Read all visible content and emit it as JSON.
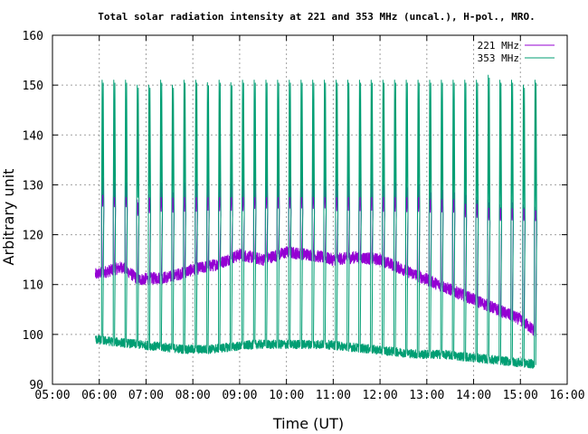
{
  "chart_data": {
    "type": "line",
    "title": "Total solar radiation intensity at 221 and 353 MHz (uncal.), H-pol., MRO.",
    "xlabel": "Time (UT)",
    "ylabel": "Arbitrary unit",
    "xlim": [
      "05:00",
      "16:00"
    ],
    "ylim": [
      90,
      160
    ],
    "x_ticks": [
      "05:00",
      "06:00",
      "07:00",
      "08:00",
      "09:00",
      "10:00",
      "11:00",
      "12:00",
      "13:00",
      "14:00",
      "15:00",
      "16:00"
    ],
    "y_ticks": [
      90,
      100,
      110,
      120,
      130,
      140,
      150,
      160
    ],
    "grid": true,
    "legend_position": "top-right",
    "time_range": [
      "05:55",
      "15:20"
    ],
    "calibration_interval_minutes": 15,
    "series": [
      {
        "name": "221 MHz",
        "color": "#9400d3",
        "baseline_points": [
          [
            "05:55",
            112
          ],
          [
            "06:30",
            113.5
          ],
          [
            "06:50",
            111
          ],
          [
            "07:30",
            111.5
          ],
          [
            "08:00",
            113
          ],
          [
            "08:30",
            114
          ],
          [
            "09:00",
            116
          ],
          [
            "09:30",
            115
          ],
          [
            "10:00",
            116.5
          ],
          [
            "10:30",
            116
          ],
          [
            "11:00",
            115
          ],
          [
            "11:30",
            115.5
          ],
          [
            "12:00",
            115
          ],
          [
            "12:30",
            113
          ],
          [
            "13:00",
            111
          ],
          [
            "13:30",
            109
          ],
          [
            "14:00",
            107
          ],
          [
            "14:30",
            105
          ],
          [
            "15:00",
            103
          ],
          [
            "15:20",
            100.5
          ]
        ],
        "calibration_peaks": [
          [
            "06:03",
            132
          ],
          [
            "06:18",
            131
          ],
          [
            "06:33",
            131
          ],
          [
            "06:48",
            127
          ],
          [
            "07:03",
            128
          ],
          [
            "07:18",
            131
          ],
          [
            "07:33",
            129
          ],
          [
            "07:48",
            131
          ],
          [
            "08:03",
            131
          ],
          [
            "08:18",
            133
          ],
          [
            "08:33",
            132
          ],
          [
            "08:48",
            132.5
          ],
          [
            "09:03",
            132
          ],
          [
            "09:18",
            132
          ],
          [
            "09:33",
            132.5
          ],
          [
            "09:48",
            132.5
          ],
          [
            "10:03",
            132.5
          ],
          [
            "10:18",
            133
          ],
          [
            "10:33",
            132
          ],
          [
            "10:48",
            133
          ],
          [
            "11:03",
            132
          ],
          [
            "11:18",
            132.5
          ],
          [
            "11:33",
            132
          ],
          [
            "11:48",
            133
          ],
          [
            "12:03",
            130.5
          ],
          [
            "12:18",
            131
          ],
          [
            "12:33",
            130
          ],
          [
            "12:48",
            130.5
          ],
          [
            "13:03",
            129
          ],
          [
            "13:18",
            129.5
          ],
          [
            "13:33",
            129
          ],
          [
            "13:48",
            128.5
          ],
          [
            "14:03",
            127.5
          ],
          [
            "14:18",
            127
          ],
          [
            "14:33",
            126
          ],
          [
            "14:48",
            127
          ],
          [
            "15:03",
            126
          ],
          [
            "15:18",
            125.5
          ]
        ],
        "calibration_lows": [
          [
            "06:03",
            125
          ],
          [
            "06:18",
            125
          ],
          [
            "06:33",
            125
          ],
          [
            "06:48",
            123.5
          ],
          [
            "07:03",
            124
          ],
          [
            "07:18",
            124
          ],
          [
            "07:33",
            124
          ],
          [
            "07:48",
            124
          ],
          [
            "08:03",
            124
          ],
          [
            "08:18",
            124
          ],
          [
            "08:33",
            124
          ],
          [
            "08:48",
            124
          ],
          [
            "09:03",
            124
          ],
          [
            "09:18",
            124.5
          ],
          [
            "09:33",
            124.5
          ],
          [
            "09:48",
            124.5
          ],
          [
            "10:03",
            124.5
          ],
          [
            "10:18",
            124.5
          ],
          [
            "10:33",
            124.5
          ],
          [
            "10:48",
            124.5
          ],
          [
            "11:03",
            124
          ],
          [
            "11:18",
            124
          ],
          [
            "11:33",
            124
          ],
          [
            "11:48",
            124
          ],
          [
            "12:03",
            124
          ],
          [
            "12:18",
            124
          ],
          [
            "12:33",
            124
          ],
          [
            "12:48",
            124
          ],
          [
            "13:03",
            124
          ],
          [
            "13:18",
            124
          ],
          [
            "13:33",
            124
          ],
          [
            "13:48",
            123
          ],
          [
            "14:03",
            123
          ],
          [
            "14:18",
            122.5
          ],
          [
            "14:33",
            122.5
          ],
          [
            "14:48",
            122.5
          ],
          [
            "15:03",
            122.5
          ],
          [
            "15:18",
            122.5
          ]
        ]
      },
      {
        "name": "353 MHz",
        "color": "#009e73",
        "baseline_points": [
          [
            "05:55",
            99
          ],
          [
            "06:20",
            98.5
          ],
          [
            "06:50",
            98
          ],
          [
            "07:20",
            97.5
          ],
          [
            "07:50",
            97
          ],
          [
            "08:20",
            97
          ],
          [
            "08:50",
            97.5
          ],
          [
            "09:20",
            98
          ],
          [
            "09:50",
            98
          ],
          [
            "10:20",
            98
          ],
          [
            "10:50",
            98
          ],
          [
            "11:20",
            97.5
          ],
          [
            "11:50",
            97
          ],
          [
            "12:20",
            96.5
          ],
          [
            "12:50",
            96
          ],
          [
            "13:20",
            96
          ],
          [
            "13:50",
            95.5
          ],
          [
            "14:20",
            95
          ],
          [
            "14:50",
            94.5
          ],
          [
            "15:20",
            94
          ]
        ],
        "calibration_peaks": [
          [
            "06:03",
            151
          ],
          [
            "06:18",
            151
          ],
          [
            "06:33",
            151
          ],
          [
            "06:48",
            150
          ],
          [
            "07:03",
            150
          ],
          [
            "07:18",
            151
          ],
          [
            "07:33",
            150
          ],
          [
            "07:48",
            151
          ],
          [
            "08:03",
            151
          ],
          [
            "08:18",
            150.5
          ],
          [
            "08:33",
            151
          ],
          [
            "08:48",
            150.5
          ],
          [
            "09:03",
            151
          ],
          [
            "09:18",
            151
          ],
          [
            "09:33",
            151
          ],
          [
            "09:48",
            151
          ],
          [
            "10:03",
            151
          ],
          [
            "10:18",
            151
          ],
          [
            "10:33",
            151
          ],
          [
            "10:48",
            151
          ],
          [
            "11:03",
            151
          ],
          [
            "11:18",
            151
          ],
          [
            "11:33",
            151
          ],
          [
            "11:48",
            151
          ],
          [
            "12:03",
            151
          ],
          [
            "12:18",
            151
          ],
          [
            "12:33",
            151
          ],
          [
            "12:48",
            151
          ],
          [
            "13:03",
            151
          ],
          [
            "13:18",
            151
          ],
          [
            "13:33",
            151
          ],
          [
            "13:48",
            151
          ],
          [
            "14:03",
            151
          ],
          [
            "14:18",
            152
          ],
          [
            "14:33",
            151
          ],
          [
            "14:48",
            151
          ],
          [
            "15:03",
            150
          ],
          [
            "15:18",
            151
          ]
        ],
        "calibration_lows": [
          [
            "06:03",
            125.5
          ],
          [
            "06:18",
            125
          ],
          [
            "06:33",
            125
          ],
          [
            "06:48",
            125
          ],
          [
            "07:03",
            125
          ],
          [
            "07:18",
            125
          ],
          [
            "07:33",
            125
          ],
          [
            "07:48",
            125
          ],
          [
            "08:03",
            125
          ],
          [
            "08:18",
            125
          ],
          [
            "08:33",
            125
          ],
          [
            "08:48",
            125
          ],
          [
            "09:03",
            125
          ],
          [
            "09:18",
            125
          ],
          [
            "09:33",
            125
          ],
          [
            "09:48",
            125
          ],
          [
            "10:03",
            125
          ],
          [
            "10:18",
            125
          ],
          [
            "10:33",
            125
          ],
          [
            "10:48",
            125
          ],
          [
            "11:03",
            125
          ],
          [
            "11:18",
            125
          ],
          [
            "11:33",
            125
          ],
          [
            "11:48",
            125
          ],
          [
            "12:03",
            125
          ],
          [
            "12:18",
            125
          ],
          [
            "12:33",
            125
          ],
          [
            "12:48",
            125
          ],
          [
            "13:03",
            124.5
          ],
          [
            "13:18",
            124.5
          ],
          [
            "13:33",
            124.5
          ],
          [
            "13:48",
            123.5
          ],
          [
            "14:03",
            123.5
          ],
          [
            "14:18",
            122.5
          ],
          [
            "14:33",
            122.5
          ],
          [
            "14:48",
            122.5
          ],
          [
            "15:03",
            122.5
          ],
          [
            "15:18",
            122
          ]
        ]
      }
    ]
  }
}
